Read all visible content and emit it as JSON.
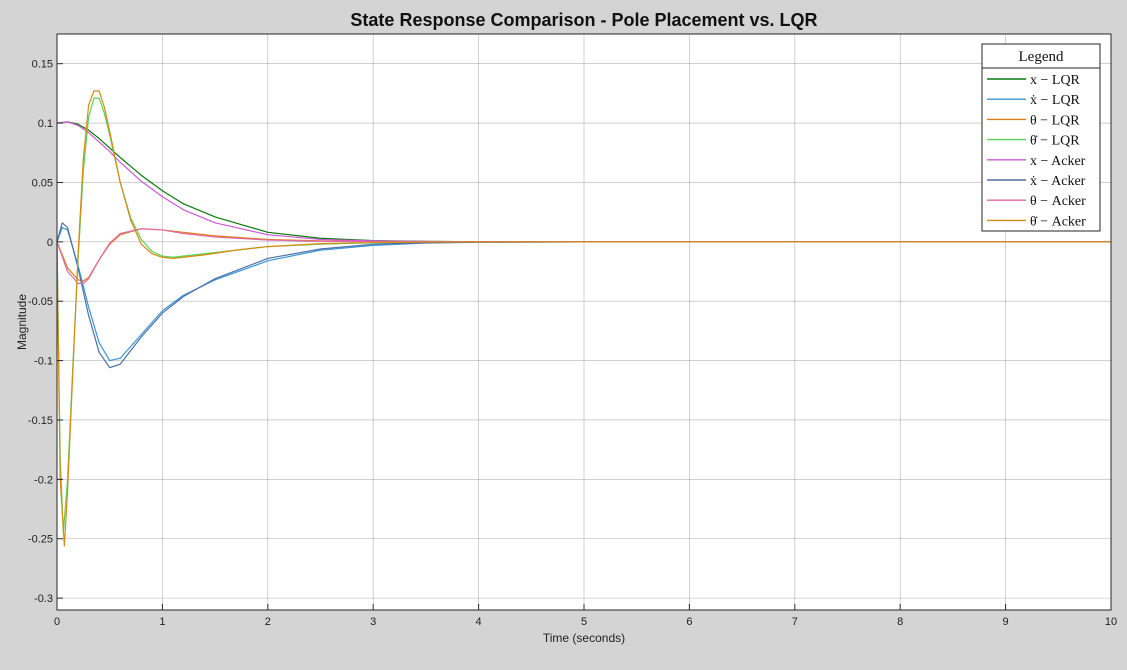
{
  "chart_data": {
    "type": "line",
    "title": "State Response Comparison - Pole Placement vs. LQR",
    "xlabel": "Time (seconds)",
    "ylabel": "Magnitude",
    "xlim": [
      0,
      10
    ],
    "ylim": [
      -0.31,
      0.175
    ],
    "grid": true,
    "background": "#ffffff",
    "frame_background": "#d4d4d4",
    "x_ticks": [
      0,
      1,
      2,
      3,
      4,
      5,
      6,
      7,
      8,
      9,
      10
    ],
    "x_tick_labels": [
      "0",
      "1",
      "2",
      "3",
      "4",
      "5",
      "6",
      "7",
      "8",
      "9",
      "10"
    ],
    "y_ticks": [
      0.15,
      0.1,
      0.05,
      0,
      -0.05,
      -0.1,
      -0.15,
      -0.2,
      -0.25,
      -0.3
    ],
    "y_tick_labels": [
      "0.15",
      "0.1",
      "0.05",
      "0",
      "-0.05",
      "-0.1",
      "-0.15",
      "-0.2",
      "-0.25",
      "-0.3"
    ],
    "legend": {
      "title": "Legend",
      "placement": "top-right",
      "entries": [
        "x − LQR",
        "ẋ − LQR",
        "θ − LQR",
        "θ̇ − LQR",
        "x − Acker",
        "ẋ − Acker",
        "θ − Acker",
        "θ̇ − Acker"
      ]
    },
    "series": [
      {
        "name": "x − LQR",
        "color": "#0a7a0a",
        "x": [
          0,
          0.1,
          0.2,
          0.3,
          0.4,
          0.5,
          0.6,
          0.8,
          1.0,
          1.2,
          1.5,
          2.0,
          2.5,
          3.0,
          3.5,
          4.0,
          5.0,
          10.0
        ],
        "y": [
          0.1,
          0.101,
          0.099,
          0.094,
          0.087,
          0.079,
          0.071,
          0.056,
          0.043,
          0.032,
          0.021,
          0.008,
          0.003,
          0.001,
          0.0004,
          0.0001,
          0,
          0
        ]
      },
      {
        "name": "ẋ − LQR",
        "color": "#3a96d6",
        "x": [
          0,
          0.05,
          0.1,
          0.2,
          0.3,
          0.4,
          0.5,
          0.6,
          0.8,
          1.0,
          1.2,
          1.5,
          2.0,
          2.5,
          3.0,
          3.5,
          4.0,
          5.0,
          10.0
        ],
        "y": [
          0,
          0.012,
          0.01,
          -0.02,
          -0.055,
          -0.085,
          -0.1,
          -0.098,
          -0.078,
          -0.058,
          -0.045,
          -0.032,
          -0.016,
          -0.007,
          -0.003,
          -0.001,
          -0.0004,
          0,
          0
        ]
      },
      {
        "name": "θ − LQR",
        "color": "#e07b1a",
        "x": [
          0,
          0.1,
          0.2,
          0.25,
          0.3,
          0.4,
          0.5,
          0.6,
          0.8,
          1.0,
          1.2,
          1.5,
          2.0,
          2.5,
          3.0,
          4.0,
          5.0,
          10.0
        ],
        "y": [
          0,
          -0.022,
          -0.032,
          -0.033,
          -0.03,
          -0.015,
          -0.002,
          0.006,
          0.011,
          0.01,
          0.008,
          0.005,
          0.002,
          0.0008,
          0.0003,
          0,
          0,
          0
        ]
      },
      {
        "name": "θ̇ − LQR",
        "color": "#5ad35a",
        "x": [
          0,
          0.03,
          0.06,
          0.1,
          0.15,
          0.2,
          0.25,
          0.3,
          0.35,
          0.4,
          0.45,
          0.5,
          0.6,
          0.7,
          0.8,
          0.9,
          1.0,
          1.1,
          1.3,
          1.6,
          2.0,
          2.5,
          3.0,
          4.0,
          5.0,
          10.0
        ],
        "y": [
          0,
          -0.18,
          -0.245,
          -0.2,
          -0.105,
          -0.015,
          0.06,
          0.105,
          0.121,
          0.121,
          0.108,
          0.09,
          0.05,
          0.02,
          0.002,
          -0.008,
          -0.012,
          -0.013,
          -0.011,
          -0.008,
          -0.004,
          -0.002,
          -0.0008,
          0,
          0,
          0
        ]
      },
      {
        "name": "x − Acker",
        "color": "#cc5ad6",
        "x": [
          0,
          0.1,
          0.2,
          0.3,
          0.4,
          0.5,
          0.6,
          0.8,
          1.0,
          1.2,
          1.5,
          2.0,
          2.5,
          3.0,
          3.5,
          4.0,
          5.0,
          10.0
        ],
        "y": [
          0.1,
          0.101,
          0.098,
          0.092,
          0.084,
          0.076,
          0.067,
          0.051,
          0.038,
          0.027,
          0.016,
          0.006,
          0.002,
          0.0008,
          0.0003,
          0.0001,
          0,
          0
        ]
      },
      {
        "name": "ẋ − Acker",
        "color": "#4f6fa6",
        "x": [
          0,
          0.05,
          0.1,
          0.2,
          0.3,
          0.4,
          0.5,
          0.6,
          0.8,
          1.0,
          1.2,
          1.5,
          2.0,
          2.5,
          3.0,
          3.5,
          4.0,
          5.0,
          10.0
        ],
        "y": [
          0,
          0.016,
          0.012,
          -0.022,
          -0.062,
          -0.093,
          -0.106,
          -0.103,
          -0.08,
          -0.06,
          -0.046,
          -0.031,
          -0.014,
          -0.006,
          -0.002,
          -0.0008,
          -0.0003,
          0,
          0
        ]
      },
      {
        "name": "θ − Acker",
        "color": "#e06aa8",
        "x": [
          0,
          0.1,
          0.2,
          0.25,
          0.3,
          0.4,
          0.5,
          0.6,
          0.8,
          1.0,
          1.2,
          1.5,
          2.0,
          2.5,
          3.0,
          4.0,
          5.0,
          10.0
        ],
        "y": [
          0,
          -0.025,
          -0.035,
          -0.035,
          -0.031,
          -0.015,
          -0.001,
          0.007,
          0.011,
          0.01,
          0.007,
          0.004,
          0.0015,
          0.0005,
          0.0002,
          0,
          0,
          0
        ]
      },
      {
        "name": "θ̇ − Acker",
        "color": "#d98a12",
        "x": [
          0,
          0.03,
          0.07,
          0.1,
          0.15,
          0.2,
          0.25,
          0.3,
          0.35,
          0.4,
          0.45,
          0.5,
          0.6,
          0.7,
          0.8,
          0.9,
          1.0,
          1.1,
          1.2,
          1.4,
          1.7,
          2.0,
          2.5,
          3.0,
          4.0,
          5.0,
          10.0
        ],
        "y": [
          0,
          -0.2,
          -0.256,
          -0.21,
          -0.11,
          -0.01,
          0.07,
          0.115,
          0.127,
          0.127,
          0.113,
          0.093,
          0.05,
          0.018,
          -0.002,
          -0.01,
          -0.013,
          -0.014,
          -0.013,
          -0.011,
          -0.007,
          -0.004,
          -0.0015,
          -0.0005,
          0,
          0,
          0
        ]
      }
    ]
  }
}
